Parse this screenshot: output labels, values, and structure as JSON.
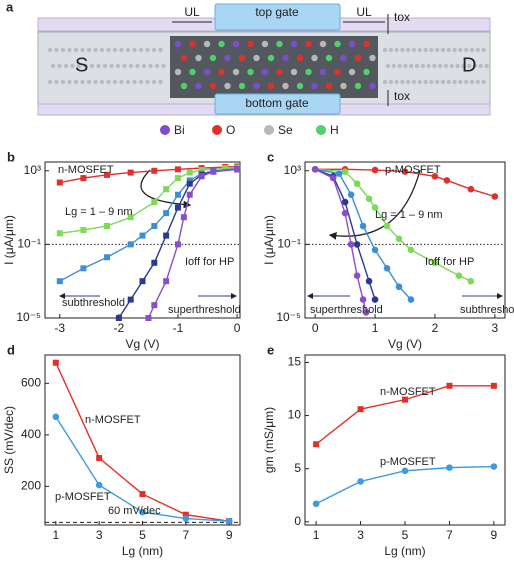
{
  "diagram": {
    "label": "a",
    "top_gate": "top gate",
    "bottom_gate": "bottom gate",
    "ul": [
      "UL",
      "UL"
    ],
    "tox": [
      "tox",
      "tox"
    ],
    "source": "S",
    "drain": "D",
    "legend": [
      {
        "name": "Bi",
        "color": "#7b4fc9"
      },
      {
        "name": "O",
        "color": "#e0302a"
      },
      {
        "name": "Se",
        "color": "#b8b8b8"
      },
      {
        "name": "H",
        "color": "#4fd06a"
      }
    ]
  },
  "chart_data": [
    {
      "type": "line",
      "label": "b",
      "log_y": true,
      "marker": "square",
      "x_label": "Vg (V)",
      "y_label": "I (μA/μm)",
      "xlim": [
        -3.25,
        0.05
      ],
      "xticks": [
        -3,
        -2,
        -1,
        0
      ],
      "ylim": [
        1e-05,
        3000
      ],
      "yticks": [
        {
          "value": 1000,
          "label": "10³"
        },
        {
          "value": 0.1,
          "label": "10⁻¹"
        },
        {
          "value": 1e-05,
          "label": "10⁻⁵"
        }
      ],
      "reference_line": 0.1,
      "annotations": [
        "n-MOSFET",
        "Lg = 1 – 9 nm",
        "Ioff for HP",
        "subthreshold",
        "superthreshold"
      ],
      "series": [
        {
          "color": "#e0302a",
          "x": [
            -3,
            -2.6,
            -2.2,
            -1.8,
            -1.4,
            -1,
            -0.6,
            -0.2,
            0
          ],
          "values": [
            230,
            400,
            600,
            800,
            1000,
            1200,
            1400,
            1600,
            1700
          ]
        },
        {
          "color": "#7ed957",
          "x": [
            -3,
            -2.6,
            -2.2,
            -1.8,
            -1.4,
            -1.2,
            -1,
            -0.8,
            -0.6,
            -0.2,
            0
          ],
          "values": [
            0.4,
            0.6,
            1,
            3,
            20,
            100,
            400,
            800,
            1100,
            1400,
            1500
          ]
        },
        {
          "color": "#3d8fd4",
          "x": [
            -3,
            -2.6,
            -2.2,
            -1.8,
            -1.6,
            -1.4,
            -1.2,
            -1,
            -0.8,
            -0.6,
            -0.4,
            0
          ],
          "values": [
            0.001,
            0.005,
            0.02,
            0.1,
            0.3,
            1,
            5,
            50,
            300,
            700,
            1000,
            1300
          ]
        },
        {
          "color": "#2b3990",
          "x": [
            -2,
            -1.8,
            -1.6,
            -1.4,
            -1.2,
            -1,
            -0.8,
            -0.6,
            -0.4,
            0
          ],
          "values": [
            1e-05,
            0.0001,
            0.001,
            0.01,
            0.3,
            10,
            200,
            600,
            900,
            1200
          ]
        },
        {
          "color": "#8a4fc8",
          "x": [
            -1.5,
            -1.4,
            -1.2,
            -1,
            -0.9,
            -0.8,
            -0.6,
            -0.4,
            0
          ],
          "values": [
            1e-05,
            5e-05,
            0.001,
            0.1,
            3,
            50,
            500,
            900,
            1200
          ]
        }
      ]
    },
    {
      "type": "line",
      "label": "c",
      "log_y": true,
      "marker": "circle",
      "x_label": "Vg (V)",
      "y_label": "I (μA/μm)",
      "xlim": [
        -0.17,
        3.17
      ],
      "xticks": [
        0,
        1,
        2,
        3
      ],
      "ylim": [
        1e-05,
        3000
      ],
      "yticks": [
        {
          "value": 1000,
          "label": "10³"
        },
        {
          "value": 0.1,
          "label": "10⁻¹"
        },
        {
          "value": 1e-05,
          "label": "10⁻⁵"
        }
      ],
      "reference_line": 0.1,
      "annotations": [
        "p-MOSFET",
        "Lg = 1 – 9 nm",
        "Ioff for HP",
        "superthreshold",
        "subthreshold"
      ],
      "series": [
        {
          "color": "#e0302a",
          "x": [
            0,
            0.5,
            1,
            1.5,
            2,
            2.2,
            2.6,
            3
          ],
          "values": [
            1200,
            1200,
            1100,
            900,
            500,
            300,
            100,
            40
          ]
        },
        {
          "color": "#7ed957",
          "x": [
            0,
            0.5,
            0.7,
            0.9,
            1,
            1.2,
            1.4,
            1.6,
            2,
            2.4,
            2.6
          ],
          "values": [
            1200,
            900,
            200,
            30,
            10,
            1,
            0.2,
            0.05,
            0.01,
            0.002,
            0.001
          ]
        },
        {
          "color": "#3d8fd4",
          "x": [
            0,
            0.4,
            0.6,
            0.8,
            1,
            1.2,
            1.4,
            1.6
          ],
          "values": [
            1200,
            700,
            50,
            1,
            0.05,
            0.005,
            0.0005,
            0.0001
          ]
        },
        {
          "color": "#2b3990",
          "x": [
            0,
            0.3,
            0.5,
            0.7,
            0.9,
            1
          ],
          "values": [
            1200,
            500,
            20,
            0.1,
            0.001,
            0.0001
          ]
        },
        {
          "color": "#8a4fc8",
          "x": [
            0,
            0.3,
            0.5,
            0.6,
            0.7,
            0.8,
            0.85
          ],
          "values": [
            1200,
            400,
            5,
            0.1,
            0.002,
            0.0001,
            2e-05
          ]
        }
      ]
    },
    {
      "type": "line",
      "label": "d",
      "x_label": "Lg (nm)",
      "y_label": "SS (mV/dec)",
      "xlim": [
        0.5,
        9.5
      ],
      "xticks": [
        1,
        3,
        5,
        7,
        9
      ],
      "x": [
        1,
        3,
        5,
        7,
        9
      ],
      "ylim": [
        50,
        710
      ],
      "yticks": [
        200,
        400,
        600
      ],
      "reference_line": 60,
      "annotations": [
        "n-MOSFET",
        "p-MOSFET",
        "60 mV/dec"
      ],
      "series": [
        {
          "color": "#e0302a",
          "marker": "square",
          "values": [
            680,
            310,
            170,
            90,
            65
          ]
        },
        {
          "color": "#3d9be0",
          "marker": "circle",
          "values": [
            470,
            205,
            100,
            75,
            65
          ]
        }
      ]
    },
    {
      "type": "line",
      "label": "e",
      "x_label": "Lg (nm)",
      "y_label": "gm (mS/μm)",
      "xlim": [
        0.5,
        9.5
      ],
      "xticks": [
        1,
        3,
        5,
        7,
        9
      ],
      "x": [
        1,
        3,
        5,
        7,
        9
      ],
      "ylim": [
        -0.3,
        15.7
      ],
      "yticks": [
        0,
        5,
        10,
        15
      ],
      "annotations": [
        "n-MOSFET",
        "p-MOSFET"
      ],
      "series": [
        {
          "color": "#e0302a",
          "marker": "square",
          "values": [
            7.3,
            10.6,
            11.5,
            12.8,
            12.8
          ]
        },
        {
          "color": "#3d9be0",
          "marker": "circle",
          "values": [
            1.7,
            3.8,
            4.8,
            5.1,
            5.2
          ]
        }
      ]
    }
  ]
}
